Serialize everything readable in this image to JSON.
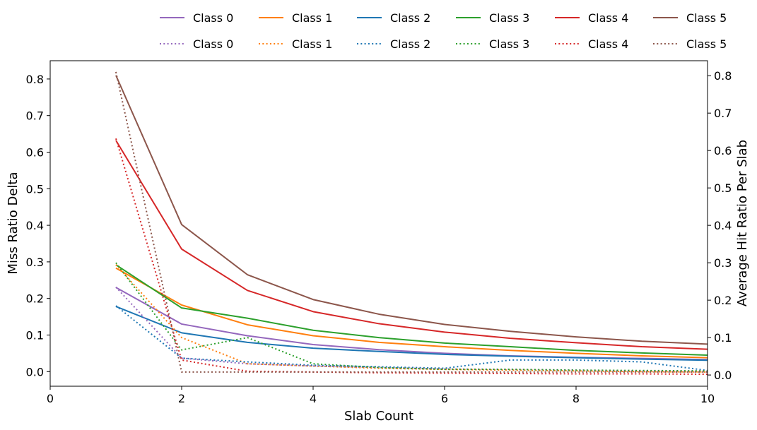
{
  "chart_data": {
    "type": "line",
    "xlabel": "Slab Count",
    "ylabel": "Miss Ratio Delta",
    "y2label": "Average Hit Ratio Per Slab",
    "xlim": [
      0,
      10
    ],
    "ylim": [
      -0.04,
      0.85
    ],
    "y2lim": [
      -0.03,
      0.84
    ],
    "x_ticks": [
      0,
      2,
      4,
      6,
      8,
      10
    ],
    "y_ticks": [
      0.0,
      0.1,
      0.2,
      0.3,
      0.4,
      0.5,
      0.6,
      0.7,
      0.8
    ],
    "y2_ticks": [
      0.0,
      0.1,
      0.2,
      0.3,
      0.4,
      0.5,
      0.6,
      0.7,
      0.8
    ],
    "x_tick_labels": [
      "0",
      "2",
      "4",
      "6",
      "8",
      "10"
    ],
    "y_tick_labels": [
      "0.0",
      "0.1",
      "0.2",
      "0.3",
      "0.4",
      "0.5",
      "0.6",
      "0.7",
      "0.8"
    ],
    "y2_tick_labels": [
      "0.0",
      "0.1",
      "0.2",
      "0.3",
      "0.4",
      "0.5",
      "0.6",
      "0.7",
      "0.8"
    ],
    "grid": false,
    "legend_placement": "top, above plot, two rows",
    "x": [
      1,
      2,
      3,
      4,
      5,
      6,
      7,
      8,
      9,
      10
    ],
    "series": [
      {
        "name": "Class 0",
        "axis": "left",
        "style": "solid",
        "color": "#9467bd",
        "values": [
          0.23,
          0.13,
          0.098,
          0.074,
          0.06,
          0.05,
          0.043,
          0.039,
          0.036,
          0.033
        ]
      },
      {
        "name": "Class 1",
        "axis": "left",
        "style": "solid",
        "color": "#ff7f0e",
        "values": [
          0.283,
          0.182,
          0.128,
          0.098,
          0.08,
          0.068,
          0.058,
          0.05,
          0.043,
          0.038
        ]
      },
      {
        "name": "Class 2",
        "axis": "left",
        "style": "solid",
        "color": "#1f77b4",
        "values": [
          0.178,
          0.106,
          0.08,
          0.064,
          0.055,
          0.047,
          0.042,
          0.038,
          0.034,
          0.031
        ]
      },
      {
        "name": "Class 3",
        "axis": "left",
        "style": "solid",
        "color": "#2ca02c",
        "values": [
          0.292,
          0.174,
          0.146,
          0.113,
          0.093,
          0.078,
          0.068,
          0.058,
          0.051,
          0.045
        ]
      },
      {
        "name": "Class 4",
        "axis": "left",
        "style": "solid",
        "color": "#d62728",
        "values": [
          0.632,
          0.335,
          0.222,
          0.164,
          0.131,
          0.108,
          0.091,
          0.079,
          0.068,
          0.061
        ]
      },
      {
        "name": "Class 5",
        "axis": "left",
        "style": "solid",
        "color": "#8c564b",
        "values": [
          0.81,
          0.402,
          0.265,
          0.197,
          0.157,
          0.129,
          0.11,
          0.095,
          0.083,
          0.075
        ]
      },
      {
        "name": "Class 0",
        "axis": "right",
        "style": "dotted",
        "color": "#9467bd",
        "values": [
          0.235,
          0.045,
          0.03,
          0.024,
          0.02,
          0.016,
          0.015,
          0.013,
          0.011,
          0.01
        ]
      },
      {
        "name": "Class 1",
        "axis": "right",
        "style": "dotted",
        "color": "#ff7f0e",
        "values": [
          0.295,
          0.1,
          0.03,
          0.024,
          0.018,
          0.015,
          0.013,
          0.011,
          0.009,
          0.008
        ]
      },
      {
        "name": "Class 2",
        "axis": "right",
        "style": "dotted",
        "color": "#1f77b4",
        "values": [
          0.185,
          0.045,
          0.035,
          0.026,
          0.022,
          0.018,
          0.04,
          0.04,
          0.035,
          0.012
        ]
      },
      {
        "name": "Class 3",
        "axis": "right",
        "style": "dotted",
        "color": "#2ca02c",
        "values": [
          0.3,
          0.067,
          0.1,
          0.03,
          0.02,
          0.015,
          0.015,
          0.013,
          0.012,
          0.011
        ]
      },
      {
        "name": "Class 4",
        "axis": "right",
        "style": "dotted",
        "color": "#d62728",
        "values": [
          0.632,
          0.04,
          0.01,
          0.008,
          0.006,
          0.005,
          0.004,
          0.003,
          0.003,
          0.002
        ]
      },
      {
        "name": "Class 5",
        "axis": "right",
        "style": "dotted",
        "color": "#8c564b",
        "values": [
          0.81,
          0.008,
          0.008,
          0.008,
          0.008,
          0.008,
          0.008,
          0.008,
          0.008,
          0.008
        ]
      }
    ]
  }
}
